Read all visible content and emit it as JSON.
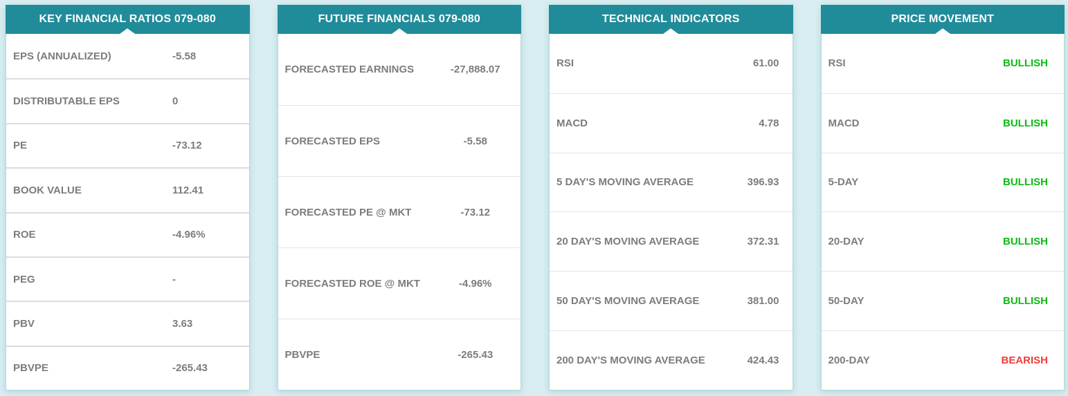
{
  "theme": {
    "page_bg": "#d8eef2",
    "header_bg": "#208c99",
    "header_text": "#ffffff",
    "text_color": "#7c7c7c",
    "bullish_color": "#0bbb10",
    "bearish_color": "#f23b36",
    "panel_border": "#b5d8d6"
  },
  "panels": [
    {
      "id": "key-financial-ratios",
      "title": "KEY FINANCIAL RATIOS 079-080",
      "rows": [
        {
          "label": "EPS (ANNUALIZED)",
          "value": "-5.58"
        },
        {
          "label": "DISTRIBUTABLE EPS",
          "value": "0"
        },
        {
          "label": "PE",
          "value": "-73.12"
        },
        {
          "label": "BOOK VALUE",
          "value": "112.41"
        },
        {
          "label": "ROE",
          "value": "-4.96%"
        },
        {
          "label": "PEG",
          "value": "-"
        },
        {
          "label": "PBV",
          "value": "3.63"
        },
        {
          "label": "PBVPE",
          "value": "-265.43"
        }
      ]
    },
    {
      "id": "future-financials",
      "title": "FUTURE FINANCIALS 079-080",
      "rows": [
        {
          "label": "FORECASTED EARNINGS",
          "value": "-27,888.07"
        },
        {
          "label": "FORECASTED EPS",
          "value": "-5.58"
        },
        {
          "label": "FORECASTED PE @ MKT",
          "value": "-73.12"
        },
        {
          "label": "FORECASTED ROE @ MKT",
          "value": "-4.96%"
        },
        {
          "label": "PBVPE",
          "value": "-265.43"
        }
      ]
    },
    {
      "id": "technical-indicators",
      "title": "TECHNICAL INDICATORS",
      "rows": [
        {
          "label": "RSI",
          "value": "61.00"
        },
        {
          "label": "MACD",
          "value": "4.78"
        },
        {
          "label": "5 DAY'S MOVING AVERAGE",
          "value": "396.93"
        },
        {
          "label": "20 DAY'S MOVING AVERAGE",
          "value": "372.31"
        },
        {
          "label": "50 DAY'S MOVING AVERAGE",
          "value": "381.00"
        },
        {
          "label": "200 DAY'S MOVING AVERAGE",
          "value": "424.43"
        }
      ]
    },
    {
      "id": "price-movement",
      "title": "PRICE MOVEMENT",
      "rows": [
        {
          "label": "RSI",
          "value": "BULLISH",
          "sentiment": "bullish"
        },
        {
          "label": "MACD",
          "value": "BULLISH",
          "sentiment": "bullish"
        },
        {
          "label": "5-DAY",
          "value": "BULLISH",
          "sentiment": "bullish"
        },
        {
          "label": "20-DAY",
          "value": "BULLISH",
          "sentiment": "bullish"
        },
        {
          "label": "50-DAY",
          "value": "BULLISH",
          "sentiment": "bullish"
        },
        {
          "label": "200-DAY",
          "value": "BEARISH",
          "sentiment": "bearish"
        }
      ]
    }
  ]
}
